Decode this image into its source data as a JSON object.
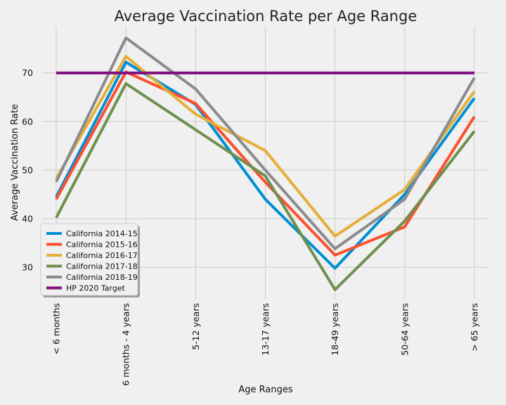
{
  "chart_data": {
    "type": "line",
    "title": "Average Vaccination Rate per Age Range",
    "xlabel": "Age Ranges",
    "ylabel": "Average Vaccination Rate",
    "categories": [
      "< 6 months",
      "6 months - 4 years",
      "5-12 years",
      "13-17 years",
      "18-49 years",
      "50-64 years",
      "> 65 years"
    ],
    "ylim": [
      23.5,
      79.5
    ],
    "yticks": [
      30,
      40,
      50,
      60,
      70
    ],
    "grid": true,
    "legend_position": "lower-left",
    "series": [
      {
        "name": "California 2014-15",
        "color": "#008fd5",
        "values": [
          44.5,
          72.2,
          63.5,
          44.0,
          29.8,
          45.0,
          64.8
        ]
      },
      {
        "name": "California 2015-16",
        "color": "#fc4f30",
        "values": [
          44.0,
          70.2,
          63.7,
          47.5,
          32.5,
          38.3,
          61.0
        ]
      },
      {
        "name": "California 2016-17",
        "color": "#e5ae38",
        "values": [
          48.2,
          73.4,
          61.5,
          54.0,
          36.4,
          46.0,
          66.2
        ]
      },
      {
        "name": "California 2017-18",
        "color": "#6d904f",
        "values": [
          40.2,
          67.8,
          58.3,
          48.8,
          25.4,
          39.5,
          58.0
        ]
      },
      {
        "name": "California 2018-19",
        "color": "#8b8b8b",
        "values": [
          47.6,
          77.2,
          66.7,
          50.0,
          33.8,
          44.0,
          69.0
        ]
      },
      {
        "name": "HP 2020 Target",
        "color": "#810f7c",
        "values": [
          70,
          70,
          70,
          70,
          70,
          70,
          70
        ]
      }
    ]
  }
}
